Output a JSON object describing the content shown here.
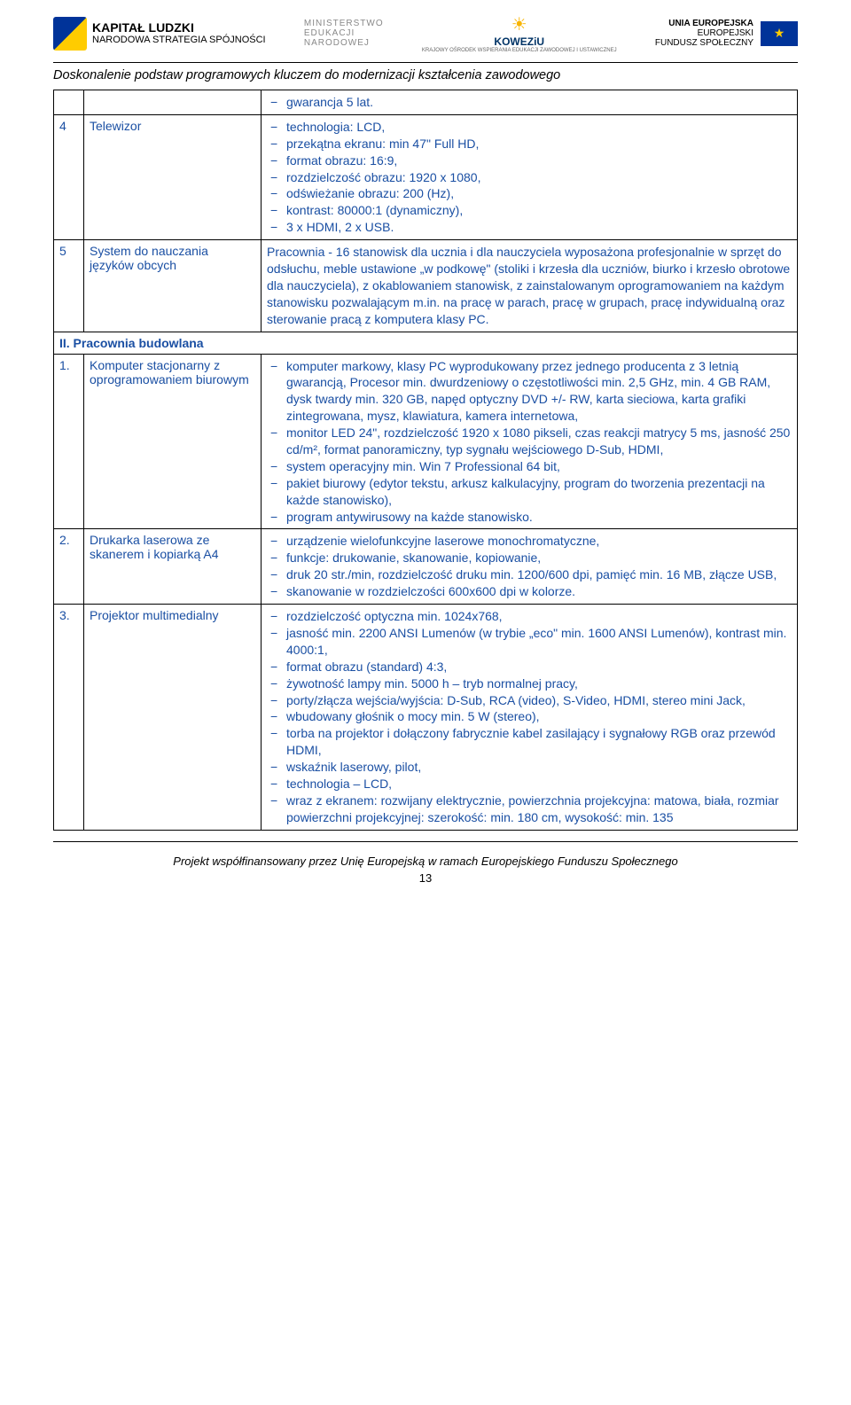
{
  "header": {
    "kl_brand": "KAPITAŁ LUDZKI",
    "kl_sub": "NARODOWA STRATEGIA SPÓJNOŚCI",
    "men_l1": "MINISTERSTWO",
    "men_l2": "EDUKACJI",
    "men_l3": "NARODOWEJ",
    "kow_brand": "KOWEZiU",
    "kow_sub": "KRAJOWY OŚRODEK WSPIERANIA EDUKACJI ZAWODOWEJ I USTAWICZNEJ",
    "ue_l1": "UNIA EUROPEJSKA",
    "ue_l2": "EUROPEJSKI",
    "ue_l3": "FUNDUSZ SPOŁECZNY",
    "subtitle": "Doskonalenie podstaw programowych kluczem do modernizacji kształcenia zawodowego"
  },
  "pre_row": {
    "item": "gwarancja 5 lat."
  },
  "rows": [
    {
      "num": "4",
      "name": "Telewizor",
      "items": [
        "technologia: LCD,",
        "przekątna ekranu: min 47\" Full HD,",
        "format obrazu: 16:9,",
        "rozdzielczość obrazu: 1920 x 1080,",
        "odświeżanie obrazu: 200 (Hz),",
        "kontrast: 80000:1 (dynamiczny),",
        "3 x HDMI, 2 x USB."
      ]
    },
    {
      "num": "5",
      "name": "System do nauczania języków obcych",
      "plain": "Pracownia - 16 stanowisk dla ucznia i dla nauczyciela wyposażona profesjonalnie w sprzęt do odsłuchu, meble ustawione „w podkowę\" (stoliki i krzesła dla uczniów, biurko i krzesło obrotowe dla nauczyciela), z okablowaniem stanowisk, z zainstalowanym oprogramowaniem na każdym stanowisku pozwalającym m.in. na pracę w parach, pracę w grupach, pracę indywidualną oraz sterowanie pracą z komputera klasy PC."
    }
  ],
  "section2": {
    "title": "II. Pracownia budowlana"
  },
  "rows2": [
    {
      "num": "1.",
      "name": "Komputer stacjonarny z oprogramowaniem biurowym",
      "items": [
        "komputer markowy, klasy PC wyprodukowany przez jednego producenta z 3 letnią gwarancją, Procesor min. dwurdzeniowy o częstotliwości min. 2,5 GHz, min. 4 GB RAM, dysk twardy min. 320 GB, napęd optyczny DVD +/- RW, karta sieciowa, karta grafiki zintegrowana, mysz, klawiatura, kamera internetowa,",
        "monitor LED 24\", rozdzielczość 1920 x 1080 pikseli, czas reakcji matrycy 5 ms, jasność 250 cd/m², format panoramiczny, typ sygnału wejściowego D-Sub, HDMI,",
        "system operacyjny min. Win 7 Professional 64 bit,",
        "pakiet biurowy (edytor tekstu, arkusz kalkulacyjny, program do tworzenia prezentacji na każde stanowisko),",
        "program antywirusowy na każde stanowisko."
      ]
    },
    {
      "num": "2.",
      "name": "Drukarka laserowa ze skanerem i kopiarką A4",
      "items": [
        "urządzenie wielofunkcyjne laserowe monochromatyczne,",
        "funkcje: drukowanie, skanowanie, kopiowanie,",
        "druk 20 str./min, rozdzielczość druku min. 1200/600 dpi, pamięć min. 16 MB, złącze USB,",
        "skanowanie w rozdzielczości 600x600 dpi w kolorze."
      ]
    },
    {
      "num": "3.",
      "name": "Projektor multimedialny",
      "items": [
        "rozdzielczość optyczna min. 1024x768,",
        "jasność min. 2200 ANSI Lumenów (w trybie „eco\" min. 1600 ANSI Lumenów), kontrast min. 4000:1,",
        "format obrazu (standard) 4:3,",
        "żywotność lampy min. 5000 h – tryb normalnej pracy,",
        "porty/złącza wejścia/wyjścia: D-Sub, RCA (video), S-Video, HDMI, stereo mini Jack,",
        "wbudowany głośnik o mocy min. 5 W (stereo),",
        "torba na projektor i dołączony fabrycznie kabel zasilający i sygnałowy RGB oraz przewód HDMI,",
        "wskaźnik laserowy, pilot,",
        "technologia – LCD,",
        "wraz z ekranem: rozwijany elektrycznie, powierzchnia projekcyjna: matowa, biała, rozmiar powierzchni projekcyjnej: szerokość: min. 180 cm, wysokość: min. 135"
      ]
    }
  ],
  "footer": {
    "text": "Projekt współfinansowany przez Unię Europejską w ramach Europejskiego Funduszu Społecznego",
    "pagenum": "13"
  },
  "colors": {
    "link_blue": "#1a4fa3",
    "border": "#000000",
    "bg": "#ffffff"
  }
}
